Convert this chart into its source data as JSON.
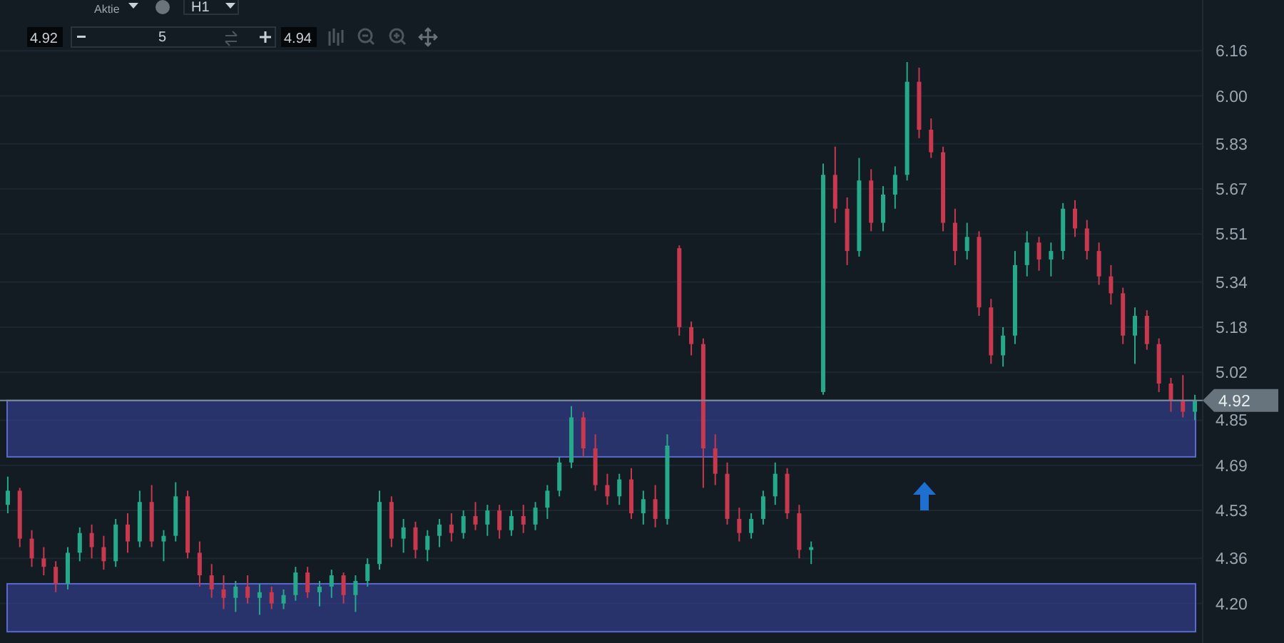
{
  "chart_data": {
    "type": "candlestick",
    "categories": [
      null,
      null,
      null,
      null,
      null,
      null,
      null,
      null,
      null,
      null,
      null,
      null,
      null,
      null,
      null,
      null,
      null,
      null,
      null,
      null,
      null,
      null,
      null,
      null,
      null,
      null,
      null,
      null,
      null,
      null,
      null,
      null,
      null,
      null,
      null,
      null,
      null,
      null,
      null,
      null,
      null,
      null,
      null,
      null,
      null,
      null,
      null,
      null,
      null,
      null,
      null,
      null,
      null,
      null,
      null,
      null,
      null,
      null,
      null,
      null,
      null,
      null,
      null,
      null,
      null,
      null,
      null,
      null,
      null,
      null,
      null,
      null,
      null,
      null,
      null,
      null,
      null,
      null,
      null,
      null,
      null,
      null,
      null,
      null,
      null,
      null,
      null,
      null,
      null,
      null,
      null,
      null,
      null,
      null,
      null,
      null,
      null,
      null,
      null,
      null
    ],
    "ohlc": [
      [
        4.55,
        4.65,
        4.52,
        4.6
      ],
      [
        4.6,
        4.61,
        4.4,
        4.43
      ],
      [
        4.43,
        4.46,
        4.33,
        4.36
      ],
      [
        4.36,
        4.4,
        4.3,
        4.33
      ],
      [
        4.33,
        4.35,
        4.24,
        4.27
      ],
      [
        4.27,
        4.4,
        4.25,
        4.38
      ],
      [
        4.38,
        4.47,
        4.35,
        4.45
      ],
      [
        4.45,
        4.48,
        4.36,
        4.4
      ],
      [
        4.4,
        4.44,
        4.32,
        4.35
      ],
      [
        4.35,
        4.5,
        4.33,
        4.48
      ],
      [
        4.48,
        4.52,
        4.38,
        4.42
      ],
      [
        4.42,
        4.6,
        4.4,
        4.56
      ],
      [
        4.56,
        4.62,
        4.4,
        4.42
      ],
      [
        4.42,
        4.46,
        4.35,
        4.44
      ],
      [
        4.44,
        4.63,
        4.42,
        4.58
      ],
      [
        4.58,
        4.6,
        4.36,
        4.38
      ],
      [
        4.38,
        4.42,
        4.26,
        4.3
      ],
      [
        4.3,
        4.34,
        4.22,
        4.25
      ],
      [
        4.25,
        4.3,
        4.18,
        4.22
      ],
      [
        4.22,
        4.28,
        4.17,
        4.26
      ],
      [
        4.26,
        4.3,
        4.2,
        4.22
      ],
      [
        4.22,
        4.27,
        4.16,
        4.24
      ],
      [
        4.24,
        4.26,
        4.18,
        4.2
      ],
      [
        4.2,
        4.25,
        4.18,
        4.23
      ],
      [
        4.23,
        4.33,
        4.21,
        4.31
      ],
      [
        4.31,
        4.33,
        4.22,
        4.24
      ],
      [
        4.24,
        4.28,
        4.19,
        4.26
      ],
      [
        4.26,
        4.32,
        4.22,
        4.3
      ],
      [
        4.3,
        4.31,
        4.2,
        4.23
      ],
      [
        4.23,
        4.3,
        4.17,
        4.28
      ],
      [
        4.28,
        4.36,
        4.26,
        4.34
      ],
      [
        4.34,
        4.6,
        4.32,
        4.56
      ],
      [
        4.56,
        4.58,
        4.4,
        4.43
      ],
      [
        4.43,
        4.5,
        4.38,
        4.47
      ],
      [
        4.47,
        4.49,
        4.36,
        4.39
      ],
      [
        4.39,
        4.46,
        4.35,
        4.44
      ],
      [
        4.44,
        4.5,
        4.4,
        4.48
      ],
      [
        4.48,
        4.52,
        4.42,
        4.45
      ],
      [
        4.45,
        4.53,
        4.43,
        4.51
      ],
      [
        4.51,
        4.56,
        4.46,
        4.48
      ],
      [
        4.48,
        4.55,
        4.44,
        4.53
      ],
      [
        4.53,
        4.55,
        4.43,
        4.46
      ],
      [
        4.46,
        4.53,
        4.44,
        4.51
      ],
      [
        4.51,
        4.55,
        4.45,
        4.48
      ],
      [
        4.48,
        4.56,
        4.46,
        4.54
      ],
      [
        4.54,
        4.62,
        4.5,
        4.6
      ],
      [
        4.6,
        4.72,
        4.58,
        4.7
      ],
      [
        4.7,
        4.9,
        4.68,
        4.86
      ],
      [
        4.86,
        4.88,
        4.72,
        4.75
      ],
      [
        4.75,
        4.8,
        4.6,
        4.62
      ],
      [
        4.62,
        4.66,
        4.55,
        4.58
      ],
      [
        4.58,
        4.66,
        4.55,
        4.64
      ],
      [
        4.64,
        4.68,
        4.5,
        4.52
      ],
      [
        4.52,
        4.6,
        4.48,
        4.57
      ],
      [
        4.57,
        4.62,
        4.47,
        4.5
      ],
      [
        4.5,
        4.8,
        4.48,
        4.76
      ],
      [
        5.46,
        5.47,
        5.15,
        5.18
      ],
      [
        5.18,
        5.2,
        5.08,
        5.12
      ],
      [
        5.12,
        5.14,
        4.61,
        4.75
      ],
      [
        4.75,
        4.8,
        4.62,
        4.66
      ],
      [
        4.66,
        4.7,
        4.48,
        4.5
      ],
      [
        4.5,
        4.54,
        4.42,
        4.45
      ],
      [
        4.45,
        4.52,
        4.43,
        4.5
      ],
      [
        4.5,
        4.6,
        4.48,
        4.58
      ],
      [
        4.58,
        4.7,
        4.55,
        4.66
      ],
      [
        4.66,
        4.68,
        4.5,
        4.52
      ],
      [
        4.52,
        4.55,
        4.36,
        4.39
      ],
      [
        4.39,
        4.42,
        4.34,
        4.4
      ],
      [
        4.95,
        5.76,
        4.94,
        5.72
      ],
      [
        5.72,
        5.82,
        5.55,
        5.6
      ],
      [
        5.6,
        5.64,
        5.4,
        5.45
      ],
      [
        5.45,
        5.78,
        5.43,
        5.7
      ],
      [
        5.7,
        5.74,
        5.52,
        5.55
      ],
      [
        5.55,
        5.68,
        5.52,
        5.65
      ],
      [
        5.65,
        5.75,
        5.6,
        5.72
      ],
      [
        5.72,
        6.12,
        5.7,
        6.05
      ],
      [
        6.05,
        6.1,
        5.85,
        5.88
      ],
      [
        5.88,
        5.92,
        5.78,
        5.8
      ],
      [
        5.8,
        5.82,
        5.52,
        5.55
      ],
      [
        5.55,
        5.6,
        5.4,
        5.45
      ],
      [
        5.45,
        5.55,
        5.42,
        5.5
      ],
      [
        5.5,
        5.52,
        5.22,
        5.25
      ],
      [
        5.25,
        5.28,
        5.05,
        5.08
      ],
      [
        5.08,
        5.18,
        5.04,
        5.15
      ],
      [
        5.15,
        5.45,
        5.12,
        5.4
      ],
      [
        5.4,
        5.52,
        5.36,
        5.48
      ],
      [
        5.48,
        5.5,
        5.38,
        5.42
      ],
      [
        5.42,
        5.48,
        5.36,
        5.45
      ],
      [
        5.45,
        5.62,
        5.42,
        5.6
      ],
      [
        5.6,
        5.63,
        5.5,
        5.53
      ],
      [
        5.53,
        5.56,
        5.42,
        5.45
      ],
      [
        5.45,
        5.48,
        5.33,
        5.36
      ],
      [
        5.36,
        5.4,
        5.26,
        5.3
      ],
      [
        5.3,
        5.32,
        5.12,
        5.15
      ],
      [
        5.15,
        5.25,
        5.05,
        5.22
      ],
      [
        5.22,
        5.24,
        5.1,
        5.12
      ],
      [
        5.12,
        5.14,
        4.95,
        4.98
      ],
      [
        4.98,
        5.0,
        4.88,
        4.92
      ],
      [
        4.92,
        5.01,
        4.86,
        4.88
      ],
      [
        4.88,
        4.94,
        4.85,
        4.92
      ]
    ],
    "ylim": [
      4.06,
      6.34
    ],
    "yticks": [
      6.16,
      {
        "value": 6.0,
        "label": "6.00"
      },
      5.83,
      5.67,
      5.51,
      5.34,
      5.18,
      5.02,
      4.85,
      4.69,
      4.53,
      4.36,
      {
        "value": 4.2,
        "label": "4.20"
      }
    ],
    "grid": "y",
    "tick_labels": "y",
    "bands": [
      {
        "axis": "y",
        "from": 4.72,
        "to": 4.92,
        "color": "#3a47a8"
      },
      {
        "axis": "y",
        "from": 4.1,
        "to": 4.27,
        "color": "#3a47a8"
      }
    ],
    "ref_lines": [
      {
        "axis": "y",
        "value": 4.92,
        "label": "4.92",
        "color": "#7d8a94"
      }
    ],
    "annotations": [
      "Aktie",
      "H1",
      "4.92",
      "5",
      "4.94"
    ]
  }
}
